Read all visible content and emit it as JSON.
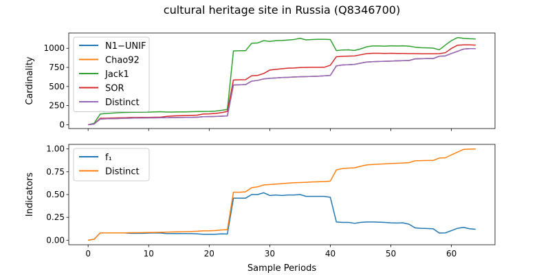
{
  "figure": {
    "title": "cultural heritage site in Russia (Q8346700)",
    "xlabel": "Sample Periods"
  },
  "chart_data": [
    {
      "type": "line",
      "ylabel": "Cardinality",
      "xlim": [
        -3.2,
        67.2
      ],
      "ylim": [
        -50,
        1200
      ],
      "xticks": [
        0,
        10,
        20,
        30,
        40,
        50,
        60
      ],
      "yticks": [
        0,
        250,
        500,
        750,
        1000
      ],
      "ytick_labels": [
        "0",
        "250",
        "500",
        "750",
        "1000"
      ],
      "show_x_tick_labels": false,
      "grid": false,
      "legend_position": "top-left",
      "x": [
        0,
        1,
        2,
        3,
        4,
        5,
        6,
        7,
        8,
        9,
        10,
        11,
        12,
        13,
        14,
        15,
        16,
        17,
        18,
        19,
        20,
        21,
        22,
        23,
        24,
        25,
        26,
        27,
        28,
        29,
        30,
        31,
        32,
        33,
        34,
        35,
        36,
        37,
        38,
        39,
        40,
        41,
        42,
        43,
        44,
        45,
        46,
        47,
        48,
        49,
        50,
        51,
        52,
        53,
        54,
        55,
        56,
        57,
        58,
        59,
        60,
        61,
        62,
        63,
        64
      ],
      "series": [
        {
          "name": "N1−UNIF",
          "color": "#1f77b4",
          "values": [
            0,
            10,
            75,
            78,
            80,
            82,
            85,
            86,
            88,
            88,
            90,
            90,
            92,
            92,
            95,
            95,
            96,
            96,
            98,
            105,
            106,
            108,
            112,
            115,
            520,
            522,
            525,
            570,
            580,
            600,
            608,
            612,
            618,
            620,
            625,
            628,
            630,
            632,
            635,
            640,
            645,
            770,
            782,
            785,
            790,
            805,
            820,
            825,
            828,
            830,
            832,
            836,
            838,
            840,
            862,
            864,
            866,
            866,
            896,
            900,
            932,
            960,
            990,
            995,
            995
          ]
        },
        {
          "name": "Chao92",
          "color": "#ff7f0e",
          "values": [
            0,
            10,
            75,
            78,
            80,
            82,
            85,
            86,
            88,
            88,
            90,
            90,
            92,
            92,
            95,
            95,
            96,
            96,
            98,
            105,
            106,
            108,
            112,
            115,
            520,
            522,
            525,
            570,
            580,
            600,
            608,
            612,
            618,
            620,
            625,
            628,
            630,
            632,
            635,
            640,
            645,
            770,
            782,
            785,
            790,
            805,
            820,
            825,
            828,
            830,
            832,
            836,
            838,
            840,
            862,
            864,
            866,
            866,
            896,
            900,
            932,
            960,
            990,
            995,
            995
          ]
        },
        {
          "name": "Jack1",
          "color": "#2ca02c",
          "values": [
            0,
            20,
            140,
            148,
            152,
            158,
            160,
            162,
            163,
            163,
            165,
            168,
            170,
            166,
            166,
            168,
            168,
            170,
            172,
            174,
            175,
            178,
            188,
            200,
            965,
            968,
            968,
            1065,
            1070,
            1100,
            1090,
            1100,
            1102,
            1108,
            1115,
            1130,
            1110,
            1115,
            1118,
            1118,
            1115,
            970,
            978,
            980,
            972,
            992,
            1020,
            1030,
            1030,
            1028,
            1032,
            1030,
            1032,
            1028,
            1015,
            1008,
            1005,
            1002,
            980,
            1042,
            1100,
            1140,
            1130,
            1125,
            1122
          ]
        },
        {
          "name": "SOR",
          "color": "#d62728",
          "values": [
            0,
            10,
            85,
            85,
            88,
            90,
            92,
            95,
            95,
            96,
            96,
            98,
            100,
            110,
            115,
            118,
            120,
            122,
            125,
            140,
            142,
            148,
            158,
            175,
            585,
            588,
            590,
            640,
            645,
            670,
            715,
            725,
            732,
            740,
            742,
            748,
            750,
            752,
            752,
            752,
            778,
            890,
            895,
            898,
            900,
            915,
            930,
            935,
            935,
            932,
            935,
            932,
            932,
            930,
            930,
            928,
            928,
            928,
            930,
            942,
            998,
            1040,
            1045,
            1045,
            1042
          ]
        },
        {
          "name": "Distinct",
          "color": "#9467bd",
          "values": [
            0,
            10,
            75,
            78,
            80,
            82,
            85,
            86,
            88,
            88,
            90,
            90,
            92,
            92,
            95,
            95,
            96,
            96,
            98,
            105,
            106,
            108,
            112,
            115,
            520,
            522,
            525,
            570,
            580,
            600,
            608,
            612,
            618,
            620,
            625,
            628,
            630,
            632,
            635,
            640,
            645,
            770,
            782,
            785,
            790,
            805,
            820,
            825,
            828,
            830,
            832,
            836,
            838,
            840,
            862,
            864,
            866,
            866,
            896,
            900,
            932,
            960,
            990,
            995,
            995
          ]
        }
      ]
    },
    {
      "type": "line",
      "ylabel": "Indicators",
      "xlim": [
        -3.2,
        67.2
      ],
      "ylim": [
        -0.05,
        1.05
      ],
      "xticks": [
        0,
        10,
        20,
        30,
        40,
        50,
        60
      ],
      "xtick_labels": [
        "0",
        "10",
        "20",
        "30",
        "40",
        "50",
        "60"
      ],
      "yticks": [
        0,
        0.25,
        0.5,
        0.75,
        1.0
      ],
      "ytick_labels": [
        "0.00",
        "0.25",
        "0.50",
        "0.75",
        "1.00"
      ],
      "show_x_tick_labels": true,
      "grid": false,
      "legend_position": "top-left",
      "x": [
        0,
        1,
        2,
        3,
        4,
        5,
        6,
        7,
        8,
        9,
        10,
        11,
        12,
        13,
        14,
        15,
        16,
        17,
        18,
        19,
        20,
        21,
        22,
        23,
        24,
        25,
        26,
        27,
        28,
        29,
        30,
        31,
        32,
        33,
        34,
        35,
        36,
        37,
        38,
        39,
        40,
        41,
        42,
        43,
        44,
        45,
        46,
        47,
        48,
        49,
        50,
        51,
        52,
        53,
        54,
        55,
        56,
        57,
        58,
        59,
        60,
        61,
        62,
        63,
        64
      ],
      "series": [
        {
          "name": "f₁",
          "color": "#1f77b4",
          "values": [
            0,
            0.01,
            0.08,
            0.08,
            0.08,
            0.08,
            0.08,
            0.075,
            0.075,
            0.075,
            0.078,
            0.08,
            0.078,
            0.072,
            0.072,
            0.072,
            0.072,
            0.072,
            0.07,
            0.065,
            0.065,
            0.065,
            0.07,
            0.068,
            0.46,
            0.46,
            0.46,
            0.5,
            0.5,
            0.52,
            0.49,
            0.495,
            0.49,
            0.495,
            0.495,
            0.5,
            0.48,
            0.48,
            0.48,
            0.48,
            0.47,
            0.2,
            0.195,
            0.195,
            0.185,
            0.195,
            0.2,
            0.2,
            0.198,
            0.195,
            0.19,
            0.188,
            0.19,
            0.175,
            0.135,
            0.13,
            0.128,
            0.125,
            0.078,
            0.08,
            0.105,
            0.13,
            0.14,
            0.125,
            0.12
          ]
        },
        {
          "name": "Distinct",
          "color": "#ff7f0e",
          "values": [
            0,
            0.01,
            0.08,
            0.08,
            0.08,
            0.08,
            0.08,
            0.082,
            0.082,
            0.083,
            0.085,
            0.085,
            0.087,
            0.088,
            0.09,
            0.092,
            0.093,
            0.095,
            0.098,
            0.103,
            0.103,
            0.105,
            0.112,
            0.115,
            0.525,
            0.525,
            0.53,
            0.575,
            0.585,
            0.605,
            0.61,
            0.615,
            0.62,
            0.625,
            0.63,
            0.632,
            0.635,
            0.638,
            0.64,
            0.642,
            0.648,
            0.77,
            0.785,
            0.79,
            0.793,
            0.81,
            0.825,
            0.83,
            0.833,
            0.836,
            0.84,
            0.843,
            0.846,
            0.85,
            0.87,
            0.872,
            0.874,
            0.874,
            0.9,
            0.903,
            0.935,
            0.965,
            0.995,
            0.998,
            1.0
          ]
        }
      ]
    }
  ]
}
